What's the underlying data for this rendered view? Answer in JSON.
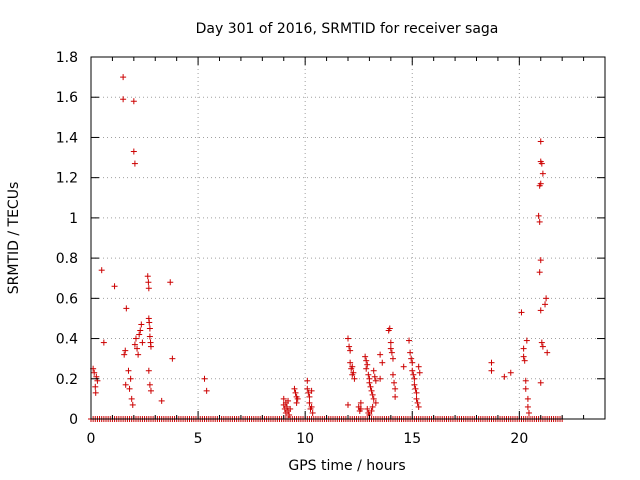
{
  "chart_data": {
    "type": "scatter",
    "title": "Day 301 of 2016, SRMTID for receiver saga",
    "xlabel": "GPS time / hours",
    "ylabel": "SRMTID / TECUs",
    "xlim": [
      0,
      24
    ],
    "ylim": [
      0,
      1.8
    ],
    "grid": true,
    "legend": "none",
    "marker": "plus",
    "color": "#cc0000",
    "x_ticks": [
      {
        "value": 0,
        "label": "0"
      },
      {
        "value": 5,
        "label": "5"
      },
      {
        "value": 10,
        "label": "10"
      },
      {
        "value": 15,
        "label": "15"
      },
      {
        "value": 20,
        "label": "20"
      }
    ],
    "y_ticks": [
      {
        "value": 0,
        "label": "0"
      },
      {
        "value": 0.2,
        "label": "0.2"
      },
      {
        "value": 0.4,
        "label": "0.4"
      },
      {
        "value": 0.6,
        "label": "0.6"
      },
      {
        "value": 0.8,
        "label": "0.8"
      },
      {
        "value": 1,
        "label": "1"
      },
      {
        "value": 1.2,
        "label": "1.2"
      },
      {
        "value": 1.4,
        "label": "1.4"
      },
      {
        "value": 1.6,
        "label": "1.6"
      },
      {
        "value": 1.8,
        "label": "1.8"
      }
    ],
    "zero_baseline": {
      "y": 0,
      "x_start": 0,
      "x_end": 22,
      "step": 0.1
    },
    "points": [
      [
        0.1,
        0.25
      ],
      [
        0.15,
        0.23
      ],
      [
        0.2,
        0.16
      ],
      [
        0.22,
        0.13
      ],
      [
        0.25,
        0.21
      ],
      [
        0.3,
        0.19
      ],
      [
        0.5,
        0.74
      ],
      [
        0.6,
        0.38
      ],
      [
        1.1,
        0.66
      ],
      [
        1.5,
        1.7
      ],
      [
        1.5,
        1.59
      ],
      [
        1.55,
        0.32
      ],
      [
        1.6,
        0.34
      ],
      [
        1.62,
        0.17
      ],
      [
        1.65,
        0.55
      ],
      [
        1.75,
        0.24
      ],
      [
        1.8,
        0.15
      ],
      [
        1.85,
        0.2
      ],
      [
        1.9,
        0.1
      ],
      [
        1.95,
        0.07
      ],
      [
        2.0,
        1.58
      ],
      [
        2.0,
        1.33
      ],
      [
        2.05,
        1.27
      ],
      [
        2.05,
        0.37
      ],
      [
        2.1,
        0.4
      ],
      [
        2.15,
        0.35
      ],
      [
        2.2,
        0.32
      ],
      [
        2.25,
        0.42
      ],
      [
        2.3,
        0.44
      ],
      [
        2.35,
        0.47
      ],
      [
        2.4,
        0.38
      ],
      [
        2.65,
        0.71
      ],
      [
        2.68,
        0.68
      ],
      [
        2.7,
        0.65
      ],
      [
        2.7,
        0.5
      ],
      [
        2.72,
        0.48
      ],
      [
        2.75,
        0.45
      ],
      [
        2.75,
        0.41
      ],
      [
        2.78,
        0.38
      ],
      [
        2.8,
        0.36
      ],
      [
        2.7,
        0.24
      ],
      [
        2.75,
        0.17
      ],
      [
        2.8,
        0.14
      ],
      [
        3.3,
        0.09
      ],
      [
        3.7,
        0.68
      ],
      [
        3.8,
        0.3
      ],
      [
        5.3,
        0.2
      ],
      [
        5.4,
        0.14
      ],
      [
        9.0,
        0.1
      ],
      [
        9.0,
        0.07
      ],
      [
        9.05,
        0.05
      ],
      [
        9.1,
        0.08
      ],
      [
        9.1,
        0.03
      ],
      [
        9.15,
        0.06
      ],
      [
        9.2,
        0.04
      ],
      [
        9.2,
        0.09
      ],
      [
        9.25,
        0.02
      ],
      [
        9.3,
        0.05
      ],
      [
        9.5,
        0.15
      ],
      [
        9.55,
        0.13
      ],
      [
        9.6,
        0.11
      ],
      [
        9.6,
        0.08
      ],
      [
        9.65,
        0.1
      ],
      [
        10.1,
        0.19
      ],
      [
        10.1,
        0.15
      ],
      [
        10.15,
        0.13
      ],
      [
        10.2,
        0.11
      ],
      [
        10.2,
        0.08
      ],
      [
        10.25,
        0.05
      ],
      [
        10.3,
        0.14
      ],
      [
        10.3,
        0.06
      ],
      [
        10.35,
        0.03
      ],
      [
        12.0,
        0.4
      ],
      [
        12.05,
        0.36
      ],
      [
        12.1,
        0.34
      ],
      [
        12.1,
        0.28
      ],
      [
        12.15,
        0.25
      ],
      [
        12.2,
        0.26
      ],
      [
        12.2,
        0.22
      ],
      [
        12.25,
        0.23
      ],
      [
        12.3,
        0.2
      ],
      [
        12.0,
        0.07
      ],
      [
        12.5,
        0.06
      ],
      [
        12.55,
        0.04
      ],
      [
        12.6,
        0.05
      ],
      [
        12.6,
        0.08
      ],
      [
        12.8,
        0.31
      ],
      [
        12.85,
        0.29
      ],
      [
        12.85,
        0.25
      ],
      [
        12.9,
        0.27
      ],
      [
        12.95,
        0.22
      ],
      [
        13.0,
        0.2
      ],
      [
        13.0,
        0.18
      ],
      [
        13.05,
        0.16
      ],
      [
        13.1,
        0.14
      ],
      [
        13.15,
        0.12
      ],
      [
        13.2,
        0.1
      ],
      [
        13.2,
        0.24
      ],
      [
        13.25,
        0.21
      ],
      [
        13.3,
        0.19
      ],
      [
        13.3,
        0.08
      ],
      [
        12.9,
        0.05
      ],
      [
        12.95,
        0.03
      ],
      [
        13.0,
        0.02
      ],
      [
        13.1,
        0.04
      ],
      [
        13.15,
        0.06
      ],
      [
        13.5,
        0.32
      ],
      [
        13.5,
        0.2
      ],
      [
        13.6,
        0.28
      ],
      [
        13.9,
        0.44
      ],
      [
        13.95,
        0.45
      ],
      [
        14.0,
        0.38
      ],
      [
        14.0,
        0.35
      ],
      [
        14.05,
        0.33
      ],
      [
        14.1,
        0.3
      ],
      [
        14.1,
        0.22
      ],
      [
        14.15,
        0.18
      ],
      [
        14.2,
        0.15
      ],
      [
        14.2,
        0.11
      ],
      [
        14.6,
        0.26
      ],
      [
        14.85,
        0.39
      ],
      [
        14.9,
        0.33
      ],
      [
        14.95,
        0.3
      ],
      [
        15.0,
        0.28
      ],
      [
        15.0,
        0.24
      ],
      [
        15.05,
        0.22
      ],
      [
        15.1,
        0.2
      ],
      [
        15.1,
        0.17
      ],
      [
        15.15,
        0.15
      ],
      [
        15.2,
        0.13
      ],
      [
        15.2,
        0.1
      ],
      [
        15.25,
        0.08
      ],
      [
        15.3,
        0.06
      ],
      [
        15.3,
        0.26
      ],
      [
        15.35,
        0.23
      ],
      [
        18.7,
        0.28
      ],
      [
        18.7,
        0.24
      ],
      [
        19.3,
        0.21
      ],
      [
        19.6,
        0.23
      ],
      [
        20.1,
        0.53
      ],
      [
        20.2,
        0.35
      ],
      [
        20.2,
        0.31
      ],
      [
        20.25,
        0.29
      ],
      [
        20.3,
        0.19
      ],
      [
        20.3,
        0.15
      ],
      [
        20.35,
        0.39
      ],
      [
        20.4,
        0.1
      ],
      [
        20.4,
        0.06
      ],
      [
        20.45,
        0.03
      ],
      [
        20.9,
        1.01
      ],
      [
        20.95,
        0.98
      ],
      [
        21.0,
        1.38
      ],
      [
        21.0,
        1.28
      ],
      [
        21.05,
        1.27
      ],
      [
        21.1,
        1.22
      ],
      [
        21.0,
        1.17
      ],
      [
        20.95,
        1.16
      ],
      [
        21.0,
        0.79
      ],
      [
        20.95,
        0.73
      ],
      [
        21.0,
        0.54
      ],
      [
        21.05,
        0.38
      ],
      [
        21.1,
        0.36
      ],
      [
        21.0,
        0.18
      ],
      [
        21.2,
        0.57
      ],
      [
        21.25,
        0.6
      ],
      [
        21.3,
        0.33
      ]
    ]
  }
}
